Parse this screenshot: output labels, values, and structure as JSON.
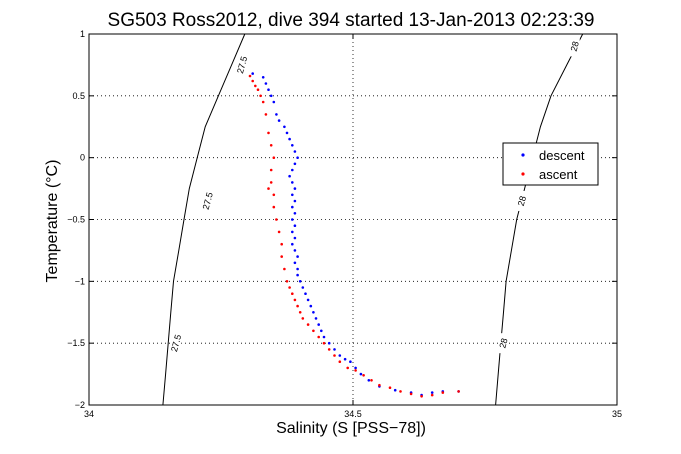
{
  "chart_data": {
    "type": "scatter",
    "title": "SG503 Ross2012, dive 394 started 13-Jan-2013 02:23:39",
    "xlabel": "Salinity (S [PSS−78])",
    "ylabel": "Temperature (°C)",
    "xlim": [
      34,
      35
    ],
    "ylim": [
      -2,
      1
    ],
    "xticks": [
      34,
      34.5,
      35
    ],
    "xtick_labels": [
      "34",
      "34.5",
      "35"
    ],
    "yticks": [
      -2,
      -1.5,
      -1,
      -0.5,
      0,
      0.5,
      1
    ],
    "ytick_labels": [
      "−2",
      "−1.5",
      "−1",
      "−0.5",
      "0",
      "0.5",
      "1"
    ],
    "grid": true,
    "legend_position": "right",
    "contours": [
      {
        "label": "27.5",
        "points": [
          [
            34.295,
            1.0
          ],
          [
            34.27,
            0.75
          ],
          [
            34.245,
            0.5
          ],
          [
            34.22,
            0.25
          ],
          [
            34.205,
            0.0
          ],
          [
            34.19,
            -0.25
          ],
          [
            34.18,
            -0.5
          ],
          [
            34.17,
            -0.75
          ],
          [
            34.16,
            -1.0
          ],
          [
            34.155,
            -1.25
          ],
          [
            34.15,
            -1.5
          ],
          [
            34.145,
            -1.75
          ],
          [
            34.14,
            -2.0
          ]
        ],
        "label_positions": [
          [
            34.29,
            0.75
          ],
          [
            34.225,
            -0.35
          ],
          [
            34.165,
            -1.5
          ]
        ]
      },
      {
        "label": "28",
        "points": [
          [
            34.935,
            1.0
          ],
          [
            34.905,
            0.75
          ],
          [
            34.875,
            0.5
          ],
          [
            34.855,
            0.25
          ],
          [
            34.84,
            0.0
          ],
          [
            34.825,
            -0.25
          ],
          [
            34.81,
            -0.5
          ],
          [
            34.8,
            -0.75
          ],
          [
            34.79,
            -1.0
          ],
          [
            34.785,
            -1.25
          ],
          [
            34.78,
            -1.5
          ],
          [
            34.775,
            -1.75
          ],
          [
            34.77,
            -2.0
          ]
        ],
        "label_positions": [
          [
            34.92,
            0.9
          ],
          [
            34.82,
            -0.35
          ],
          [
            34.785,
            -1.5
          ]
        ]
      }
    ],
    "series": [
      {
        "name": "descent",
        "color": "#0000ff",
        "marker": "point",
        "points": [
          [
            34.31,
            0.68
          ],
          [
            34.33,
            0.65
          ],
          [
            34.335,
            0.6
          ],
          [
            34.34,
            0.55
          ],
          [
            34.345,
            0.5
          ],
          [
            34.35,
            0.45
          ],
          [
            34.355,
            0.35
          ],
          [
            34.36,
            0.3
          ],
          [
            34.37,
            0.25
          ],
          [
            34.375,
            0.2
          ],
          [
            34.38,
            0.15
          ],
          [
            34.385,
            0.1
          ],
          [
            34.39,
            0.05
          ],
          [
            34.395,
            0.0
          ],
          [
            34.39,
            -0.05
          ],
          [
            34.385,
            -0.1
          ],
          [
            34.38,
            -0.15
          ],
          [
            34.385,
            -0.2
          ],
          [
            34.39,
            -0.25
          ],
          [
            34.385,
            -0.3
          ],
          [
            34.39,
            -0.35
          ],
          [
            34.385,
            -0.4
          ],
          [
            34.39,
            -0.45
          ],
          [
            34.385,
            -0.5
          ],
          [
            34.39,
            -0.55
          ],
          [
            34.385,
            -0.6
          ],
          [
            34.39,
            -0.65
          ],
          [
            34.385,
            -0.7
          ],
          [
            34.39,
            -0.75
          ],
          [
            34.395,
            -0.8
          ],
          [
            34.39,
            -0.85
          ],
          [
            34.395,
            -0.9
          ],
          [
            34.395,
            -0.95
          ],
          [
            34.4,
            -1.0
          ],
          [
            34.405,
            -1.05
          ],
          [
            34.41,
            -1.1
          ],
          [
            34.415,
            -1.15
          ],
          [
            34.42,
            -1.2
          ],
          [
            34.425,
            -1.25
          ],
          [
            34.43,
            -1.3
          ],
          [
            34.435,
            -1.35
          ],
          [
            34.44,
            -1.4
          ],
          [
            34.445,
            -1.45
          ],
          [
            34.455,
            -1.5
          ],
          [
            34.465,
            -1.55
          ],
          [
            34.475,
            -1.6
          ],
          [
            34.485,
            -1.63
          ],
          [
            34.495,
            -1.65
          ],
          [
            34.505,
            -1.7
          ],
          [
            34.515,
            -1.75
          ],
          [
            34.53,
            -1.8
          ],
          [
            34.55,
            -1.85
          ],
          [
            34.58,
            -1.88
          ],
          [
            34.61,
            -1.9
          ],
          [
            34.63,
            -1.92
          ],
          [
            34.65,
            -1.9
          ],
          [
            34.67,
            -1.89
          ],
          [
            34.7,
            -1.89
          ]
        ]
      },
      {
        "name": "ascent",
        "color": "#ff0000",
        "marker": "point",
        "points": [
          [
            34.305,
            0.66
          ],
          [
            34.31,
            0.62
          ],
          [
            34.315,
            0.58
          ],
          [
            34.32,
            0.55
          ],
          [
            34.325,
            0.5
          ],
          [
            34.33,
            0.45
          ],
          [
            34.335,
            0.35
          ],
          [
            34.34,
            0.2
          ],
          [
            34.345,
            0.1
          ],
          [
            34.35,
            0.0
          ],
          [
            34.345,
            -0.1
          ],
          [
            34.345,
            -0.2
          ],
          [
            34.34,
            -0.25
          ],
          [
            34.35,
            -0.3
          ],
          [
            34.35,
            -0.4
          ],
          [
            34.355,
            -0.5
          ],
          [
            34.36,
            -0.6
          ],
          [
            34.365,
            -0.7
          ],
          [
            34.365,
            -0.8
          ],
          [
            34.37,
            -0.9
          ],
          [
            34.375,
            -1.0
          ],
          [
            34.38,
            -1.05
          ],
          [
            34.385,
            -1.1
          ],
          [
            34.39,
            -1.15
          ],
          [
            34.395,
            -1.2
          ],
          [
            34.4,
            -1.25
          ],
          [
            34.405,
            -1.3
          ],
          [
            34.415,
            -1.35
          ],
          [
            34.425,
            -1.4
          ],
          [
            34.435,
            -1.45
          ],
          [
            34.445,
            -1.5
          ],
          [
            34.455,
            -1.55
          ],
          [
            34.465,
            -1.6
          ],
          [
            34.475,
            -1.65
          ],
          [
            34.49,
            -1.7
          ],
          [
            34.505,
            -1.72
          ],
          [
            34.52,
            -1.76
          ],
          [
            34.535,
            -1.8
          ],
          [
            34.55,
            -1.84
          ],
          [
            34.57,
            -1.86
          ],
          [
            34.59,
            -1.89
          ],
          [
            34.61,
            -1.91
          ],
          [
            34.63,
            -1.93
          ],
          [
            34.65,
            -1.92
          ],
          [
            34.67,
            -1.9
          ],
          [
            34.7,
            -1.89
          ]
        ]
      }
    ]
  }
}
